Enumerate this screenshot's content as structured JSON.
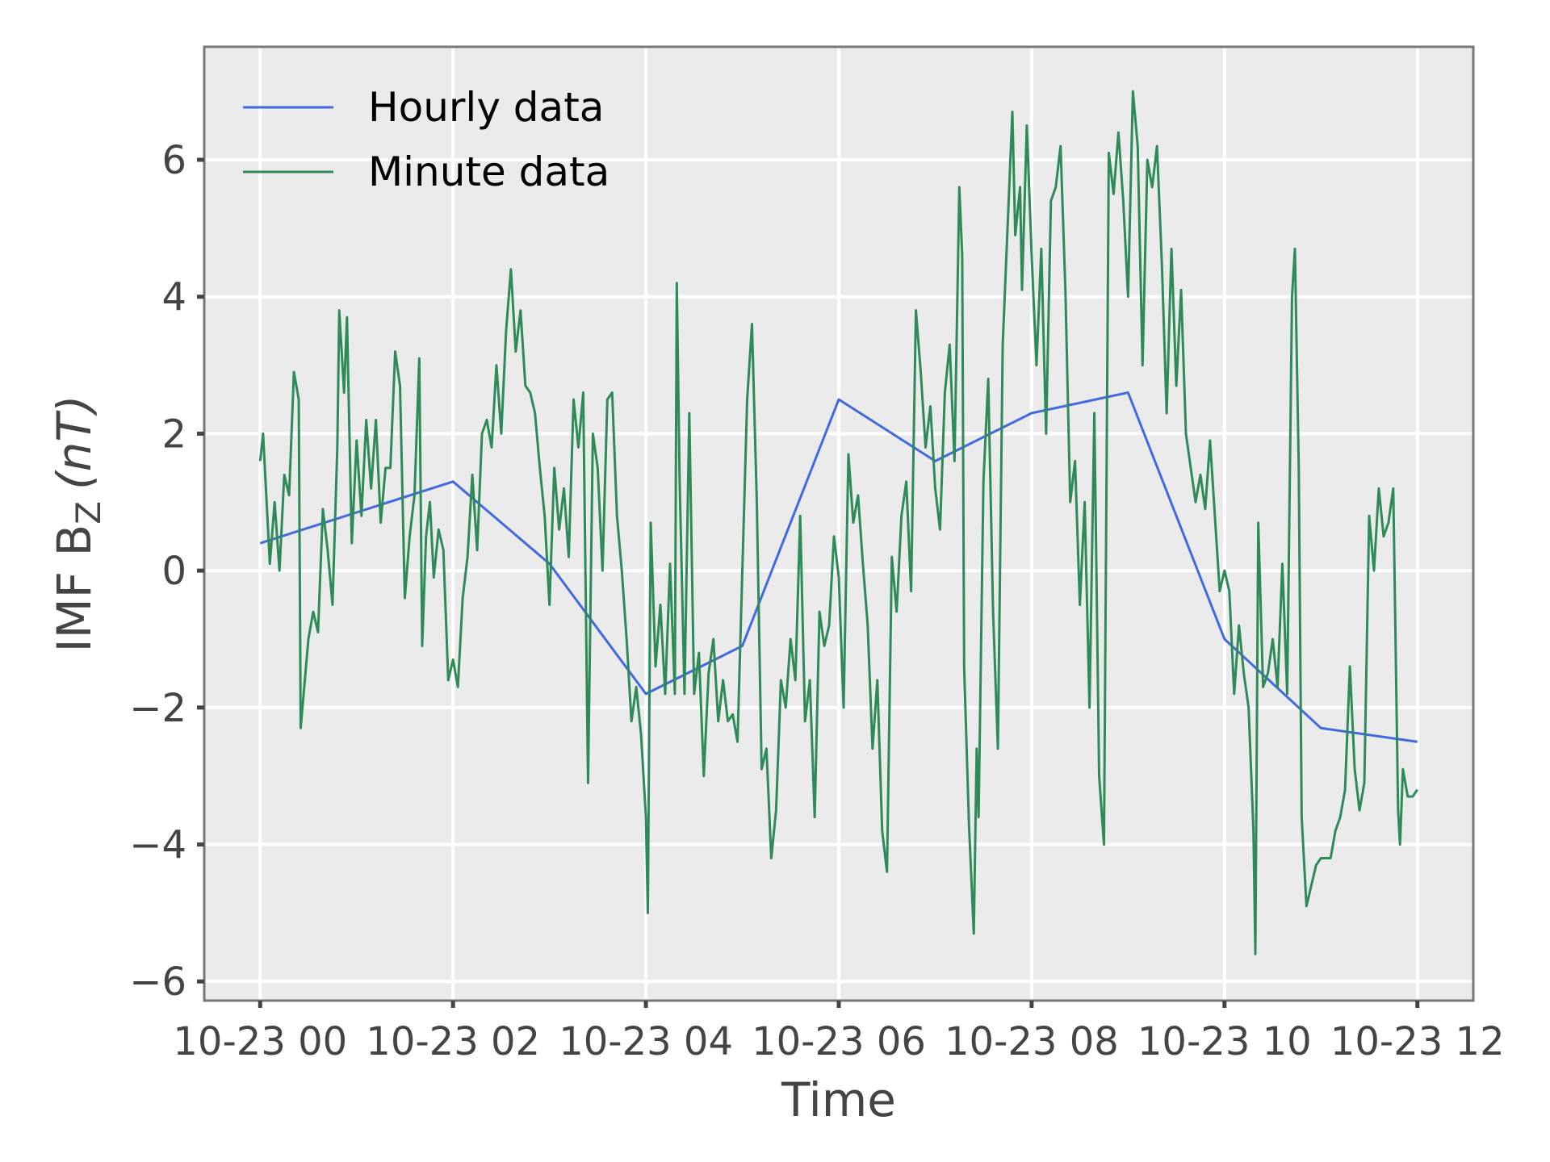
{
  "chart_data": {
    "type": "line",
    "xlabel": "Time",
    "ylabel": {
      "text": "IMF B",
      "subscript": "Z",
      "unit": "(nT)"
    },
    "xlim": [
      -0.58,
      12.58
    ],
    "ylim": [
      -6.28,
      7.65
    ],
    "xticks": [
      {
        "value": 0,
        "label": "10-23 00"
      },
      {
        "value": 2,
        "label": "10-23 02"
      },
      {
        "value": 4,
        "label": "10-23 04"
      },
      {
        "value": 6,
        "label": "10-23 06"
      },
      {
        "value": 8,
        "label": "10-23 08"
      },
      {
        "value": 10,
        "label": "10-23 10"
      },
      {
        "value": 12,
        "label": "10-23 12"
      }
    ],
    "yticks": [
      {
        "value": -6,
        "label": "−6"
      },
      {
        "value": -4,
        "label": "−4"
      },
      {
        "value": -2,
        "label": "−2"
      },
      0,
      2,
      4,
      6
    ],
    "grid": true,
    "legend": "upper left",
    "series": [
      {
        "name": "Hourly data",
        "color": "#4169e1",
        "x": [
          0,
          1,
          2,
          3,
          4,
          5,
          6,
          7,
          8,
          9,
          10,
          11,
          12
        ],
        "values": [
          0.4,
          0.85,
          1.3,
          0.1,
          -1.8,
          -1.1,
          2.5,
          1.6,
          2.3,
          2.6,
          -1.0,
          -2.3,
          -2.5
        ]
      },
      {
        "name": "Minute data",
        "color": "#2e8b57",
        "x": [
          0,
          0.03,
          0.1,
          0.15,
          0.2,
          0.25,
          0.3,
          0.35,
          0.4,
          0.42,
          0.5,
          0.55,
          0.6,
          0.65,
          0.7,
          0.75,
          0.8,
          0.82,
          0.87,
          0.9,
          0.95,
          1,
          1.05,
          1.1,
          1.15,
          1.2,
          1.25,
          1.3,
          1.35,
          1.4,
          1.45,
          1.5,
          1.55,
          1.6,
          1.65,
          1.68,
          1.72,
          1.76,
          1.8,
          1.85,
          1.9,
          1.95,
          2,
          2.05,
          2.1,
          2.15,
          2.2,
          2.25,
          2.3,
          2.35,
          2.4,
          2.45,
          2.5,
          2.55,
          2.6,
          2.65,
          2.7,
          2.75,
          2.8,
          2.85,
          2.9,
          2.95,
          3,
          3.05,
          3.1,
          3.15,
          3.2,
          3.25,
          3.3,
          3.35,
          3.4,
          3.45,
          3.5,
          3.55,
          3.6,
          3.65,
          3.7,
          3.75,
          3.8,
          3.85,
          3.9,
          3.95,
          4,
          4.02,
          4.05,
          4.1,
          4.15,
          4.2,
          4.25,
          4.3,
          4.32,
          4.35,
          4.4,
          4.45,
          4.5,
          4.55,
          4.6,
          4.65,
          4.7,
          4.75,
          4.8,
          4.85,
          4.9,
          4.95,
          5.05,
          5.1,
          5.15,
          5.2,
          5.25,
          5.3,
          5.35,
          5.4,
          5.45,
          5.5,
          5.55,
          5.6,
          5.65,
          5.7,
          5.75,
          5.8,
          5.85,
          5.9,
          5.95,
          6,
          6.05,
          6.1,
          6.15,
          6.2,
          6.25,
          6.3,
          6.35,
          6.4,
          6.45,
          6.5,
          6.55,
          6.6,
          6.65,
          6.7,
          6.75,
          6.8,
          6.85,
          6.9,
          6.95,
          7,
          7.05,
          7.1,
          7.15,
          7.2,
          7.25,
          7.28,
          7.3,
          7.35,
          7.4,
          7.43,
          7.45,
          7.5,
          7.55,
          7.6,
          7.65,
          7.7,
          7.75,
          7.8,
          7.83,
          7.88,
          7.9,
          7.95,
          8,
          8.05,
          8.1,
          8.15,
          8.2,
          8.25,
          8.3,
          8.35,
          8.4,
          8.45,
          8.5,
          8.55,
          8.6,
          8.65,
          8.7,
          8.75,
          8.8,
          8.85,
          8.9,
          8.95,
          9,
          9.05,
          9.1,
          9.15,
          9.2,
          9.25,
          9.3,
          9.35,
          9.4,
          9.45,
          9.5,
          9.55,
          9.6,
          9.7,
          9.75,
          9.8,
          9.85,
          9.9,
          9.95,
          10,
          10.05,
          10.1,
          10.15,
          10.2,
          10.25,
          10.3,
          10.32,
          10.35,
          10.4,
          10.45,
          10.5,
          10.55,
          10.6,
          10.65,
          10.7,
          10.73,
          10.77,
          10.8,
          10.85,
          10.9,
          10.95,
          11,
          11.05,
          11.1,
          11.15,
          11.2,
          11.25,
          11.3,
          11.35,
          11.4,
          11.45,
          11.5,
          11.55,
          11.6,
          11.65,
          11.7,
          11.75,
          11.8,
          11.82,
          11.85,
          11.9,
          11.95,
          12
        ],
        "values": [
          1.6,
          2.0,
          0.1,
          1.0,
          0.0,
          1.4,
          1.1,
          2.9,
          2.5,
          -2.3,
          -1.0,
          -0.6,
          -0.9,
          0.9,
          0.3,
          -0.5,
          1.8,
          3.8,
          2.6,
          3.7,
          0.4,
          1.9,
          0.8,
          2.2,
          1.2,
          2.2,
          0.7,
          1.5,
          1.5,
          3.2,
          2.7,
          -0.4,
          0.5,
          1.1,
          3.1,
          -1.1,
          0.5,
          1.0,
          -0.1,
          0.6,
          0.3,
          -1.6,
          -1.3,
          -1.7,
          -0.4,
          0.2,
          1.4,
          0.3,
          2.0,
          2.2,
          1.8,
          3.0,
          2.0,
          3.5,
          4.4,
          3.2,
          3.8,
          2.7,
          2.6,
          2.3,
          1.5,
          0.8,
          -0.5,
          1.5,
          0.6,
          1.2,
          0.2,
          2.5,
          1.8,
          2.6,
          -3.1,
          2.0,
          1.5,
          0.0,
          2.5,
          2.6,
          0.8,
          0.0,
          -1.0,
          -2.2,
          -1.7,
          -2.4,
          -3.6,
          -5.0,
          0.7,
          -1.4,
          -0.5,
          -1.8,
          0.1,
          -1.8,
          4.2,
          1.3,
          -1.8,
          2.3,
          -1.8,
          -1.2,
          -3.0,
          -1.5,
          -1.0,
          -2.2,
          -1.6,
          -2.2,
          -2.1,
          -2.5,
          2.5,
          3.6,
          1.0,
          -2.9,
          -2.6,
          -4.2,
          -3.5,
          -1.6,
          -2.0,
          -1.0,
          -1.6,
          0.8,
          -2.2,
          -1.6,
          -3.6,
          -0.6,
          -1.1,
          -0.8,
          0.5,
          -0.1,
          -2.0,
          1.7,
          0.7,
          1.1,
          0.1,
          -0.8,
          -2.6,
          -1.6,
          -3.8,
          -4.4,
          0.2,
          -0.6,
          0.8,
          1.3,
          -0.3,
          3.8,
          2.9,
          1.8,
          2.4,
          1.2,
          0.6,
          2.6,
          3.3,
          1.6,
          5.6,
          4.6,
          -1.4,
          -3.7,
          -5.3,
          -2.6,
          -3.6,
          1.3,
          2.8,
          -0.6,
          -2.6,
          3.3,
          5.0,
          6.7,
          4.9,
          5.6,
          4.1,
          6.5,
          4.6,
          3.0,
          4.7,
          2.0,
          5.4,
          5.6,
          6.2,
          4.1,
          1.0,
          1.6,
          -0.5,
          1.0,
          -2.0,
          2.3,
          -3.0,
          -4.0,
          6.1,
          5.5,
          6.4,
          5.4,
          4.0,
          7.0,
          6.2,
          3.0,
          6.0,
          5.6,
          6.2,
          4.5,
          2.3,
          4.7,
          2.7,
          4.1,
          2.0,
          1.0,
          1.4,
          0.9,
          1.9,
          0.8,
          -0.3,
          0.0,
          -0.3,
          -1.8,
          -0.8,
          -1.5,
          -2.0,
          -3.8,
          -5.6,
          0.7,
          -1.7,
          -1.5,
          -1.0,
          -1.7,
          0.1,
          -1.8,
          4.0,
          4.7,
          1.5,
          -3.6,
          -4.9,
          -4.6,
          -4.3,
          -4.2,
          -4.2,
          -4.2,
          -3.8,
          -3.6,
          -3.2,
          -1.4,
          -2.9,
          -3.5,
          -3.1,
          0.8,
          0.0,
          1.2,
          0.5,
          0.7,
          1.2,
          -3.5,
          -4.0,
          -2.9,
          -3.3,
          -3.3,
          -3.2
        ]
      }
    ]
  }
}
